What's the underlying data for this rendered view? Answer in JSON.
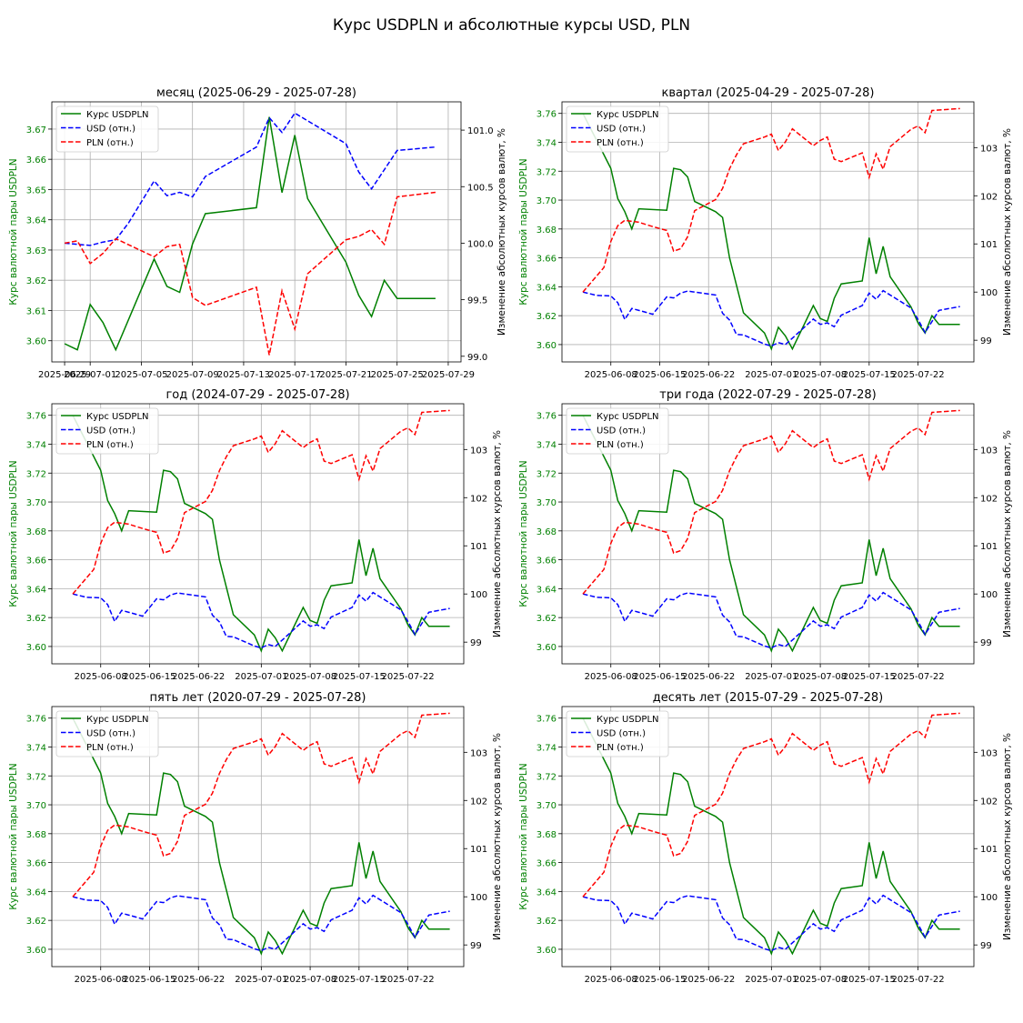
{
  "suptitle": "Курс USDPLN и абсолютные курсы USD, PLN",
  "colors": {
    "rate": "#008000",
    "usd": "#0000ff",
    "pln": "#ff0000",
    "grid": "#b0b0b0"
  },
  "chart_data": [
    {
      "type": "line",
      "title": "месяц (2025-06-29 - 2025-07-28)",
      "ylabel_left": "Курс валютной пары USDPLN",
      "ylabel_right": "Изменение абсолютных курсов валют, %",
      "x_start": "2025-06-29",
      "x_end": "2025-07-29",
      "xticks": [
        "2025-06-29",
        "2025-07-01",
        "2025-07-05",
        "2025-07-09",
        "2025-07-13",
        "2025-07-17",
        "2025-07-21",
        "2025-07-25",
        "2025-07-29"
      ],
      "xlim": [
        "2025-06-28",
        "2025-07-30"
      ],
      "ylim_left": [
        3.593,
        3.679
      ],
      "yticks_left": [
        "3.60",
        "3.61",
        "3.62",
        "3.63",
        "3.64",
        "3.65",
        "3.66",
        "3.67"
      ],
      "ylim_right": [
        98.95,
        101.25
      ],
      "yticks_right": [
        "99.0",
        "99.5",
        "100.0",
        "100.5",
        "101.0"
      ],
      "legend": [
        "Курс USDPLN",
        "USD (отн.)",
        "PLN (отн.)"
      ],
      "legend_position": "upper-left",
      "grid": true,
      "series": [
        {
          "name": "Курс USDPLN",
          "axis": "left",
          "style": "solid",
          "points": [
            [
              "2025-06-29",
              3.599
            ],
            [
              "2025-06-30",
              3.597
            ],
            [
              "2025-07-01",
              3.612
            ],
            [
              "2025-07-02",
              3.606
            ],
            [
              "2025-07-03",
              3.597
            ],
            [
              "2025-07-06",
              3.627
            ],
            [
              "2025-07-07",
              3.618
            ],
            [
              "2025-07-08",
              3.616
            ],
            [
              "2025-07-09",
              3.632
            ],
            [
              "2025-07-10",
              3.642
            ],
            [
              "2025-07-14",
              3.644
            ],
            [
              "2025-07-15",
              3.674
            ],
            [
              "2025-07-16",
              3.649
            ],
            [
              "2025-07-17",
              3.668
            ],
            [
              "2025-07-18",
              3.647
            ],
            [
              "2025-07-21",
              3.626
            ],
            [
              "2025-07-22",
              3.615
            ],
            [
              "2025-07-23",
              3.608
            ],
            [
              "2025-07-24",
              3.62
            ],
            [
              "2025-07-25",
              3.614
            ],
            [
              "2025-07-28",
              3.614
            ]
          ]
        },
        {
          "name": "USD (отн.)",
          "axis": "right",
          "style": "dashed",
          "points": [
            [
              "2025-06-29",
              100.0
            ],
            [
              "2025-06-30",
              99.99
            ],
            [
              "2025-07-01",
              99.98
            ],
            [
              "2025-07-02",
              100.01
            ],
            [
              "2025-07-03",
              100.03
            ],
            [
              "2025-07-04",
              100.18
            ],
            [
              "2025-07-06",
              100.55
            ],
            [
              "2025-07-07",
              100.42
            ],
            [
              "2025-07-08",
              100.45
            ],
            [
              "2025-07-09",
              100.41
            ],
            [
              "2025-07-10",
              100.59
            ],
            [
              "2025-07-14",
              100.85
            ],
            [
              "2025-07-15",
              101.11
            ],
            [
              "2025-07-16",
              100.98
            ],
            [
              "2025-07-17",
              101.15
            ],
            [
              "2025-07-21",
              100.88
            ],
            [
              "2025-07-22",
              100.63
            ],
            [
              "2025-07-23",
              100.48
            ],
            [
              "2025-07-25",
              100.82
            ],
            [
              "2025-07-28",
              100.85
            ]
          ]
        },
        {
          "name": "PLN (отн.)",
          "axis": "right",
          "style": "dashed",
          "points": [
            [
              "2025-06-29",
              100.0
            ],
            [
              "2025-06-30",
              100.02
            ],
            [
              "2025-07-01",
              99.82
            ],
            [
              "2025-07-02",
              99.91
            ],
            [
              "2025-07-03",
              100.04
            ],
            [
              "2025-07-06",
              99.88
            ],
            [
              "2025-07-07",
              99.97
            ],
            [
              "2025-07-08",
              99.99
            ],
            [
              "2025-07-09",
              99.52
            ],
            [
              "2025-07-10",
              99.45
            ],
            [
              "2025-07-14",
              99.61
            ],
            [
              "2025-07-15",
              99.01
            ],
            [
              "2025-07-16",
              99.58
            ],
            [
              "2025-07-17",
              99.24
            ],
            [
              "2025-07-18",
              99.73
            ],
            [
              "2025-07-21",
              100.03
            ],
            [
              "2025-07-22",
              100.06
            ],
            [
              "2025-07-23",
              100.12
            ],
            [
              "2025-07-24",
              99.99
            ],
            [
              "2025-07-25",
              100.41
            ],
            [
              "2025-07-28",
              100.45
            ]
          ]
        }
      ]
    },
    {
      "type": "line",
      "title": "квартал (2025-04-29 - 2025-07-28)",
      "ylabel_left": "Курс валютной пары USDPLN",
      "ylabel_right": "Изменение абсолютных курсов валют, %",
      "xticks": [
        "2025-06-08",
        "2025-06-15",
        "2025-06-22",
        "2025-07-01",
        "2025-07-08",
        "2025-07-15",
        "2025-07-22"
      ],
      "xlim": [
        "2025-06-01",
        "2025-07-30"
      ],
      "ylim_left": [
        3.588,
        3.768
      ],
      "yticks_left": [
        "3.60",
        "3.62",
        "3.64",
        "3.66",
        "3.68",
        "3.70",
        "3.72",
        "3.74",
        "3.76"
      ],
      "ylim_right": [
        98.55,
        103.95
      ],
      "yticks_right": [
        "99",
        "100",
        "101",
        "102",
        "103"
      ],
      "legend": [
        "Курс USDPLN",
        "USD (отн.)",
        "PLN (отн.)"
      ],
      "legend_position": "upper-left",
      "grid": true,
      "series": "shared"
    },
    {
      "type": "line",
      "title": "год (2024-07-29 - 2025-07-28)",
      "ylabel_left": "Курс валютной пары USDPLN",
      "ylabel_right": "Изменение абсолютных курсов валют, %",
      "xticks": [
        "2025-06-08",
        "2025-06-15",
        "2025-06-22",
        "2025-07-01",
        "2025-07-08",
        "2025-07-15",
        "2025-07-22"
      ],
      "xlim": [
        "2025-06-01",
        "2025-07-30"
      ],
      "ylim_left": [
        3.588,
        3.768
      ],
      "yticks_left": [
        "3.60",
        "3.62",
        "3.64",
        "3.66",
        "3.68",
        "3.70",
        "3.72",
        "3.74",
        "3.76"
      ],
      "ylim_right": [
        98.55,
        103.95
      ],
      "yticks_right": [
        "99",
        "100",
        "101",
        "102",
        "103"
      ],
      "legend": [
        "Курс USDPLN",
        "USD (отн.)",
        "PLN (отн.)"
      ],
      "legend_position": "upper-left",
      "grid": true,
      "series": "shared"
    },
    {
      "type": "line",
      "title": "три года (2022-07-29 - 2025-07-28)",
      "ylabel_left": "Курс валютной пары USDPLN",
      "ylabel_right": "Изменение абсолютных курсов валют, %",
      "xticks": [
        "2025-06-08",
        "2025-06-15",
        "2025-06-22",
        "2025-07-01",
        "2025-07-08",
        "2025-07-15",
        "2025-07-22"
      ],
      "xlim": [
        "2025-06-01",
        "2025-07-30"
      ],
      "ylim_left": [
        3.588,
        3.768
      ],
      "yticks_left": [
        "3.60",
        "3.62",
        "3.64",
        "3.66",
        "3.68",
        "3.70",
        "3.72",
        "3.74",
        "3.76"
      ],
      "ylim_right": [
        98.55,
        103.95
      ],
      "yticks_right": [
        "99",
        "100",
        "101",
        "102",
        "103"
      ],
      "legend": [
        "Курс USDPLN",
        "USD (отн.)",
        "PLN (отн.)"
      ],
      "legend_position": "upper-left",
      "grid": true,
      "series": "shared"
    },
    {
      "type": "line",
      "title": "пять лет (2020-07-29 - 2025-07-28)",
      "ylabel_left": "Курс валютной пары USDPLN",
      "ylabel_right": "Изменение абсолютных курсов валют, %",
      "xticks": [
        "2025-06-08",
        "2025-06-15",
        "2025-06-22",
        "2025-07-01",
        "2025-07-08",
        "2025-07-15",
        "2025-07-22"
      ],
      "xlim": [
        "2025-06-01",
        "2025-07-30"
      ],
      "ylim_left": [
        3.588,
        3.768
      ],
      "yticks_left": [
        "3.60",
        "3.62",
        "3.64",
        "3.66",
        "3.68",
        "3.70",
        "3.72",
        "3.74",
        "3.76"
      ],
      "ylim_right": [
        98.55,
        103.95
      ],
      "yticks_right": [
        "99",
        "100",
        "101",
        "102",
        "103"
      ],
      "legend": [
        "Курс USDPLN",
        "USD (отн.)",
        "PLN (отн.)"
      ],
      "legend_position": "upper-left",
      "grid": true,
      "series": "shared"
    },
    {
      "type": "line",
      "title": "десять лет (2015-07-29 - 2025-07-28)",
      "ylabel_left": "Курс валютной пары USDPLN",
      "ylabel_right": "Изменение абсолютных курсов валют, %",
      "xticks": [
        "2025-06-08",
        "2025-06-15",
        "2025-06-22",
        "2025-07-01",
        "2025-07-08",
        "2025-07-15",
        "2025-07-22"
      ],
      "xlim": [
        "2025-06-01",
        "2025-07-30"
      ],
      "ylim_left": [
        3.588,
        3.768
      ],
      "yticks_left": [
        "3.60",
        "3.62",
        "3.64",
        "3.66",
        "3.68",
        "3.70",
        "3.72",
        "3.74",
        "3.76"
      ],
      "ylim_right": [
        98.55,
        103.95
      ],
      "yticks_right": [
        "99",
        "100",
        "101",
        "102",
        "103"
      ],
      "legend": [
        "Курс USDPLN",
        "USD (отн.)",
        "PLN (отн.)"
      ],
      "legend_position": "upper-left",
      "grid": true,
      "series": "shared"
    }
  ],
  "shared_series": [
    {
      "name": "Курс USDPLN",
      "axis": "left",
      "style": "solid",
      "points": [
        [
          "2025-06-04",
          3.76
        ],
        [
          "2025-06-06",
          3.741
        ],
        [
          "2025-06-08",
          3.722
        ],
        [
          "2025-06-09",
          3.701
        ],
        [
          "2025-06-10",
          3.692
        ],
        [
          "2025-06-11",
          3.68
        ],
        [
          "2025-06-12",
          3.694
        ],
        [
          "2025-06-16",
          3.693
        ],
        [
          "2025-06-17",
          3.722
        ],
        [
          "2025-06-18",
          3.721
        ],
        [
          "2025-06-19",
          3.716
        ],
        [
          "2025-06-20",
          3.699
        ],
        [
          "2025-06-23",
          3.692
        ],
        [
          "2025-06-24",
          3.688
        ],
        [
          "2025-06-25",
          3.66
        ],
        [
          "2025-06-27",
          3.622
        ],
        [
          "2025-06-30",
          3.608
        ],
        [
          "2025-07-01",
          3.597
        ],
        [
          "2025-07-02",
          3.612
        ],
        [
          "2025-07-03",
          3.606
        ],
        [
          "2025-07-04",
          3.597
        ],
        [
          "2025-07-07",
          3.627
        ],
        [
          "2025-07-08",
          3.618
        ],
        [
          "2025-07-09",
          3.616
        ],
        [
          "2025-07-10",
          3.632
        ],
        [
          "2025-07-11",
          3.642
        ],
        [
          "2025-07-14",
          3.644
        ],
        [
          "2025-07-15",
          3.674
        ],
        [
          "2025-07-16",
          3.649
        ],
        [
          "2025-07-17",
          3.668
        ],
        [
          "2025-07-18",
          3.647
        ],
        [
          "2025-07-21",
          3.626
        ],
        [
          "2025-07-22",
          3.615
        ],
        [
          "2025-07-23",
          3.608
        ],
        [
          "2025-07-24",
          3.62
        ],
        [
          "2025-07-25",
          3.614
        ],
        [
          "2025-07-28",
          3.614
        ]
      ]
    },
    {
      "name": "USD (отн.)",
      "axis": "right",
      "style": "dashed",
      "points": [
        [
          "2025-06-04",
          100.0
        ],
        [
          "2025-06-06",
          99.93
        ],
        [
          "2025-06-08",
          99.92
        ],
        [
          "2025-06-09",
          99.78
        ],
        [
          "2025-06-10",
          99.43
        ],
        [
          "2025-06-11",
          99.66
        ],
        [
          "2025-06-13",
          99.58
        ],
        [
          "2025-06-14",
          99.54
        ],
        [
          "2025-06-16",
          99.9
        ],
        [
          "2025-06-17",
          99.88
        ],
        [
          "2025-06-18",
          99.98
        ],
        [
          "2025-06-19",
          100.02
        ],
        [
          "2025-06-20",
          100.0
        ],
        [
          "2025-06-23",
          99.94
        ],
        [
          "2025-06-24",
          99.56
        ],
        [
          "2025-06-25",
          99.42
        ],
        [
          "2025-06-26",
          99.12
        ],
        [
          "2025-06-27",
          99.11
        ],
        [
          "2025-06-30",
          98.92
        ],
        [
          "2025-07-01",
          98.88
        ],
        [
          "2025-07-02",
          98.95
        ],
        [
          "2025-07-03",
          98.91
        ],
        [
          "2025-07-07",
          99.44
        ],
        [
          "2025-07-08",
          99.33
        ],
        [
          "2025-07-09",
          99.36
        ],
        [
          "2025-07-10",
          99.28
        ],
        [
          "2025-07-11",
          99.52
        ],
        [
          "2025-07-14",
          99.72
        ],
        [
          "2025-07-15",
          99.98
        ],
        [
          "2025-07-16",
          99.85
        ],
        [
          "2025-07-17",
          100.03
        ],
        [
          "2025-07-21",
          99.67
        ],
        [
          "2025-07-22",
          99.43
        ],
        [
          "2025-07-23",
          99.16
        ],
        [
          "2025-07-25",
          99.62
        ],
        [
          "2025-07-28",
          99.7
        ]
      ]
    },
    {
      "name": "PLN (отн.)",
      "axis": "right",
      "style": "dashed",
      "points": [
        [
          "2025-06-04",
          100.0
        ],
        [
          "2025-06-06",
          100.34
        ],
        [
          "2025-06-07",
          100.51
        ],
        [
          "2025-06-08",
          101.05
        ],
        [
          "2025-06-09",
          101.38
        ],
        [
          "2025-06-10",
          101.49
        ],
        [
          "2025-06-12",
          101.45
        ],
        [
          "2025-06-14",
          101.36
        ],
        [
          "2025-06-16",
          101.28
        ],
        [
          "2025-06-17",
          100.85
        ],
        [
          "2025-06-18",
          100.9
        ],
        [
          "2025-06-19",
          101.15
        ],
        [
          "2025-06-20",
          101.69
        ],
        [
          "2025-06-23",
          101.92
        ],
        [
          "2025-06-24",
          102.15
        ],
        [
          "2025-06-25",
          102.56
        ],
        [
          "2025-06-26",
          102.85
        ],
        [
          "2025-06-27",
          103.08
        ],
        [
          "2025-06-30",
          103.22
        ],
        [
          "2025-07-01",
          103.28
        ],
        [
          "2025-07-02",
          102.94
        ],
        [
          "2025-07-03",
          103.12
        ],
        [
          "2025-07-04",
          103.39
        ],
        [
          "2025-07-07",
          103.04
        ],
        [
          "2025-07-08",
          103.15
        ],
        [
          "2025-07-09",
          103.22
        ],
        [
          "2025-07-10",
          102.76
        ],
        [
          "2025-07-11",
          102.71
        ],
        [
          "2025-07-14",
          102.89
        ],
        [
          "2025-07-15",
          102.38
        ],
        [
          "2025-07-16",
          102.87
        ],
        [
          "2025-07-17",
          102.55
        ],
        [
          "2025-07-18",
          103.02
        ],
        [
          "2025-07-21",
          103.38
        ],
        [
          "2025-07-22",
          103.45
        ],
        [
          "2025-07-23",
          103.31
        ],
        [
          "2025-07-24",
          103.77
        ],
        [
          "2025-07-28",
          103.81
        ]
      ]
    }
  ]
}
